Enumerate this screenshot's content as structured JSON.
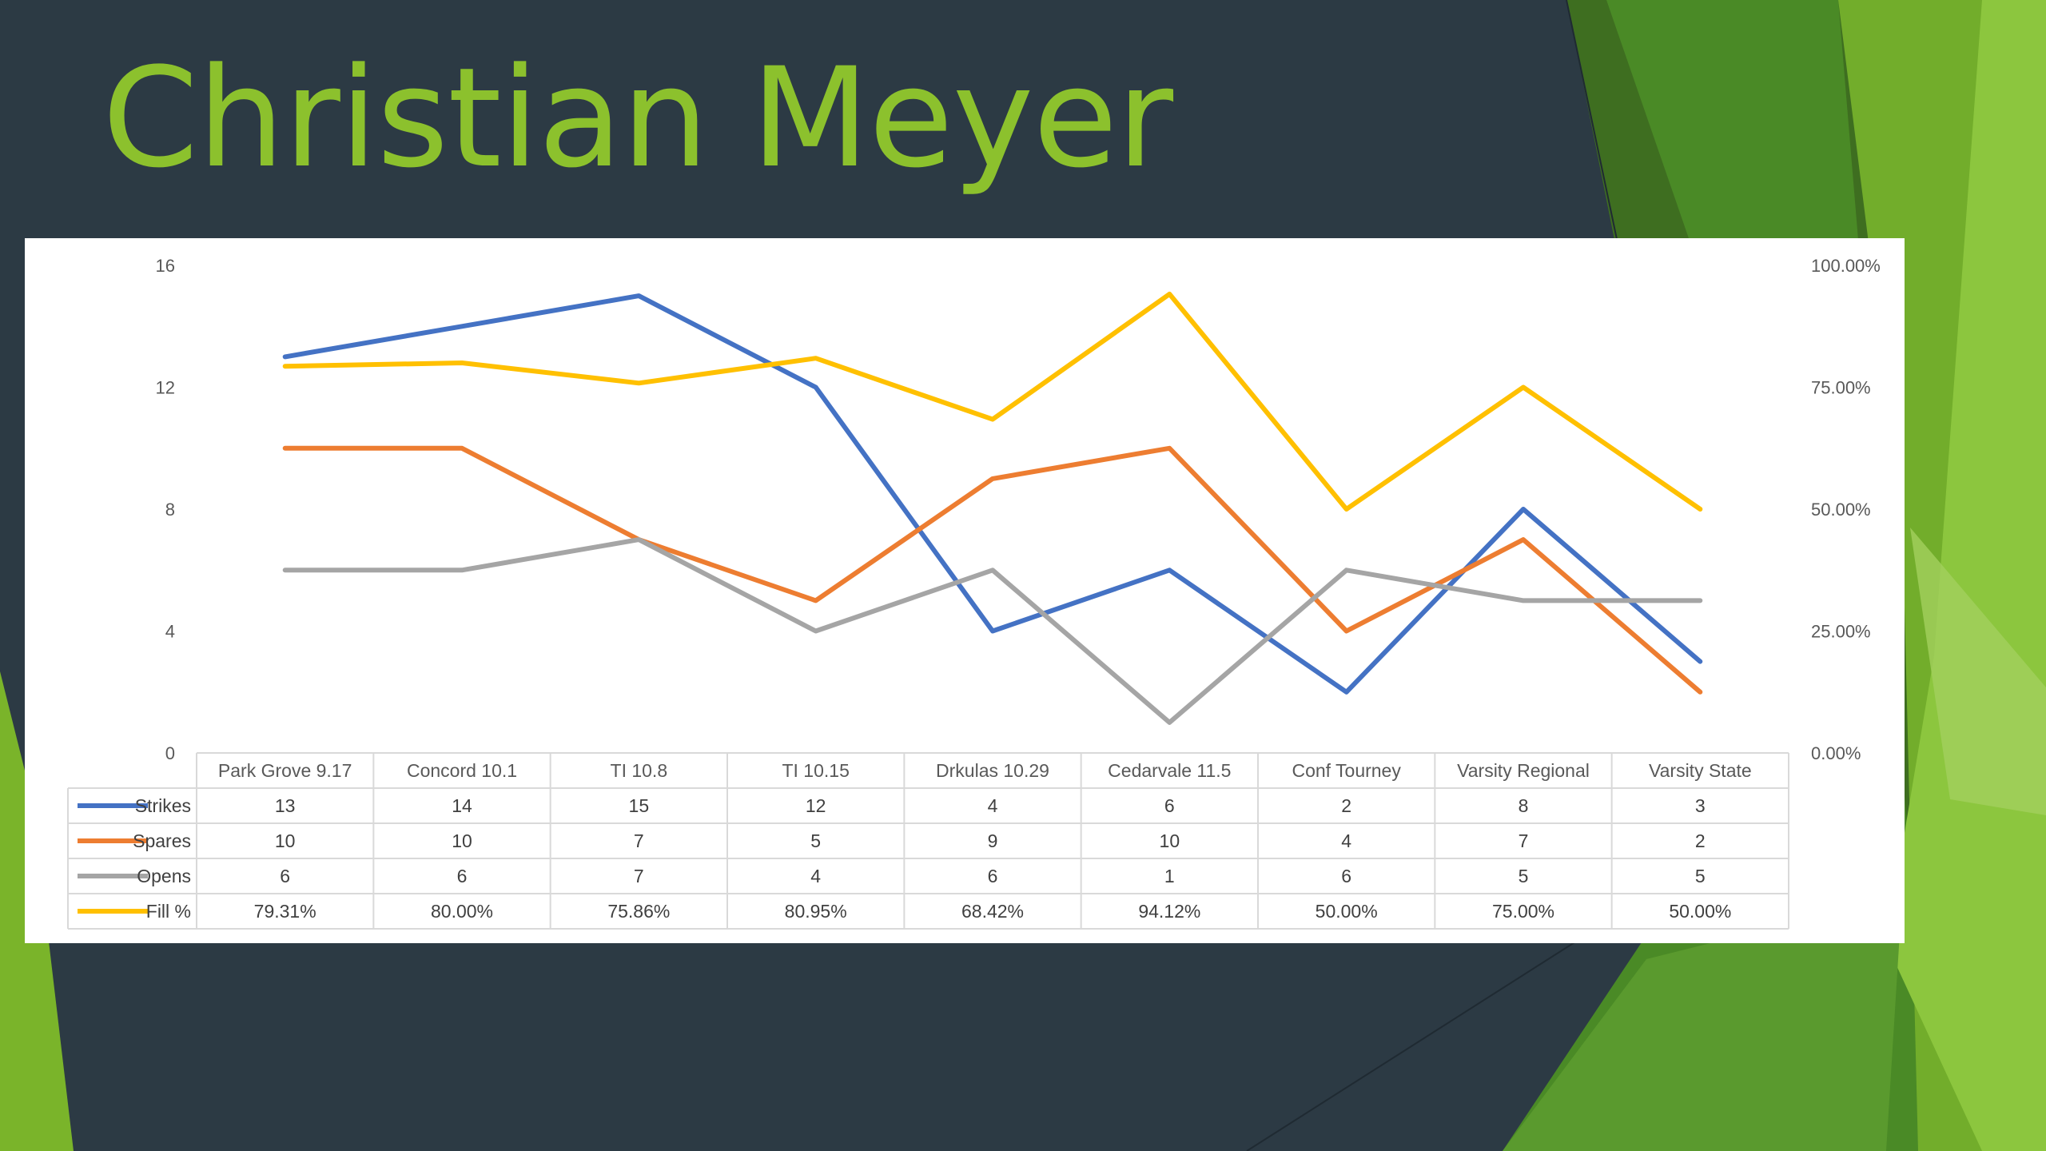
{
  "slide": {
    "title": "Christian Meyer"
  },
  "chart_data": {
    "type": "line",
    "title": "",
    "categories": [
      "Park Grove 9.17",
      "Concord 10.1",
      "TI 10.8",
      "TI 10.15",
      "Drkulas 10.29",
      "Cedarvale 11.5",
      "Conf Tourney",
      "Varsity Regional",
      "Varsity State"
    ],
    "left_axis": {
      "min": 0,
      "max": 16,
      "ticks": [
        "0",
        "4",
        "8",
        "12",
        "16"
      ]
    },
    "right_axis": {
      "min": 0,
      "max": 1,
      "ticks": [
        "0.00%",
        "25.00%",
        "50.00%",
        "75.00%",
        "100.00%"
      ]
    },
    "series": [
      {
        "name": "Strikes",
        "color": "#4472c4",
        "axis": "left",
        "values": [
          13,
          14,
          15,
          12,
          4,
          6,
          2,
          8,
          3
        ],
        "labels": [
          "13",
          "14",
          "15",
          "12",
          "4",
          "6",
          "2",
          "8",
          "3"
        ]
      },
      {
        "name": "Spares",
        "color": "#ed7d31",
        "axis": "left",
        "values": [
          10,
          10,
          7,
          5,
          9,
          10,
          4,
          7,
          2
        ],
        "labels": [
          "10",
          "10",
          "7",
          "5",
          "9",
          "10",
          "4",
          "7",
          "2"
        ]
      },
      {
        "name": "Opens",
        "color": "#a5a5a5",
        "axis": "left",
        "values": [
          6,
          6,
          7,
          4,
          6,
          1,
          6,
          5,
          5
        ],
        "labels": [
          "6",
          "6",
          "7",
          "4",
          "6",
          "1",
          "6",
          "5",
          "5"
        ]
      },
      {
        "name": "Fill %",
        "color": "#ffc000",
        "axis": "right",
        "values": [
          0.7931,
          0.8,
          0.7586,
          0.8095,
          0.6842,
          0.9412,
          0.5,
          0.75,
          0.5
        ],
        "labels": [
          "79.31%",
          "80.00%",
          "75.86%",
          "80.95%",
          "68.42%",
          "94.12%",
          "50.00%",
          "75.00%",
          "50.00%"
        ]
      }
    ],
    "gridlines": false,
    "legend": "data-table"
  }
}
